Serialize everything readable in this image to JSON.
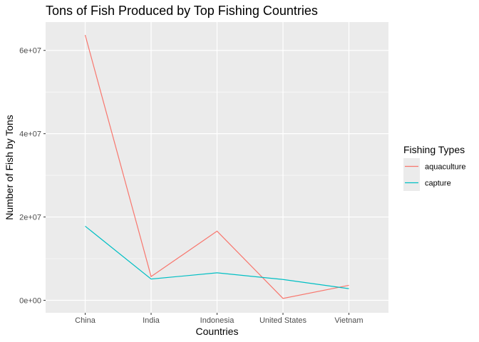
{
  "chart_data": {
    "type": "line",
    "title": "Tons of Fish Produced by Top Fishing Countries",
    "xlabel": "Countries",
    "ylabel": "Number of Fish by Tons",
    "categories": [
      "China",
      "India",
      "Indonesia",
      "United States",
      "Vietnam"
    ],
    "y_ticks": [
      0,
      20000000,
      40000000,
      60000000
    ],
    "y_tick_labels": [
      "0e+00",
      "2e+07",
      "4e+07",
      "6e+07"
    ],
    "ylim": [
      -3000000,
      66800000
    ],
    "grid": true,
    "legend": {
      "title": "Fishing Types",
      "position": "right"
    },
    "series": [
      {
        "name": "aquaculture",
        "color": "#F8766D",
        "values": [
          63700000,
          5700000,
          16600000,
          450000,
          3600000
        ]
      },
      {
        "name": "capture",
        "color": "#00BFC4",
        "values": [
          17800000,
          5100000,
          6600000,
          5000000,
          2800000
        ]
      }
    ]
  }
}
